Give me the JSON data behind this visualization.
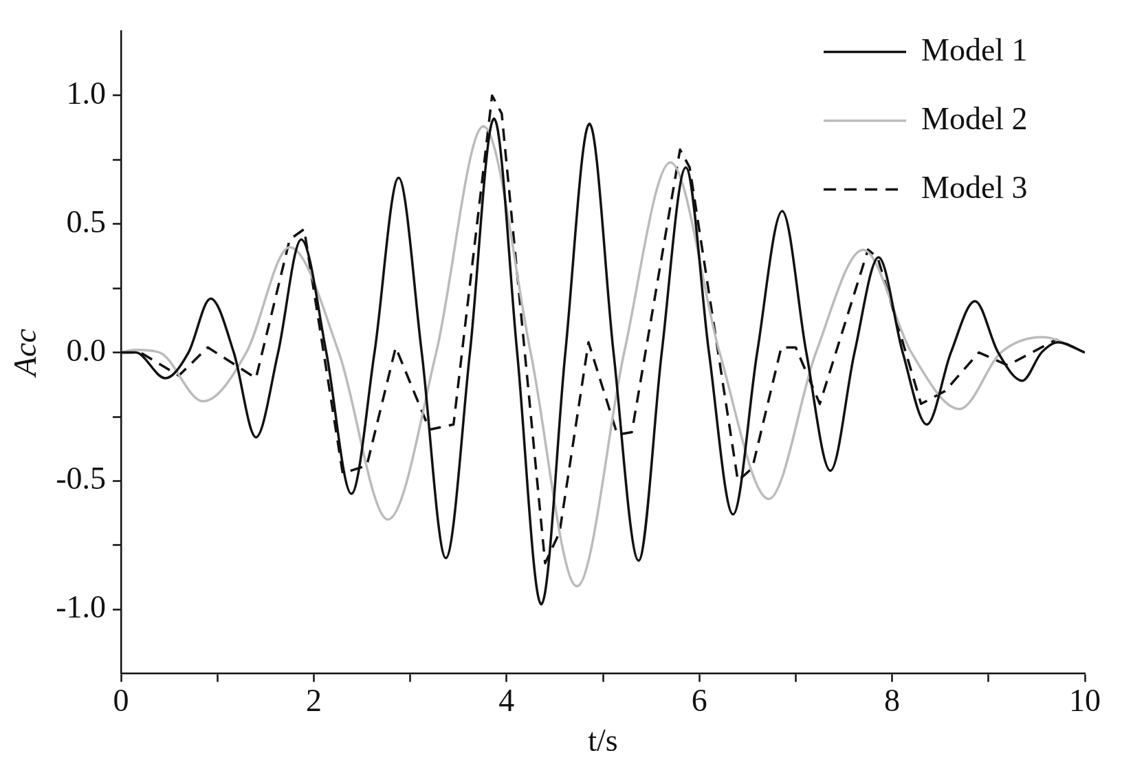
{
  "chart_data": {
    "type": "line",
    "xlabel": "t/s",
    "ylabel": "Acc",
    "legend": "top right",
    "grid": false,
    "xlim": [
      0,
      10
    ],
    "xticks": [
      0,
      {
        "value": 1,
        "label": null
      },
      2,
      {
        "value": 3,
        "label": null
      },
      4,
      {
        "value": 5,
        "label": null
      },
      6,
      {
        "value": 7,
        "label": null
      },
      8,
      {
        "value": 9,
        "label": null
      },
      10
    ],
    "ylim": [
      -1.25,
      1.25
    ],
    "yticks": [
      {
        "value": -1,
        "label": "-1.0"
      },
      {
        "value": -0.75,
        "label": null
      },
      {
        "value": -0.5,
        "label": "-0.5"
      },
      {
        "value": -0.25,
        "label": null
      },
      {
        "value": 0,
        "label": "0.0"
      },
      {
        "value": 0.25,
        "label": null
      },
      {
        "value": 0.5,
        "label": "0.5"
      },
      {
        "value": 0.75,
        "label": null
      },
      {
        "value": 1,
        "label": "1.0"
      }
    ],
    "series": [
      {
        "name": "Model 1",
        "color": "#111111",
        "line_style": "solid",
        "x": [
          0,
          0.15,
          0.46,
          0.7,
          0.93,
          1.17,
          1.4,
          1.63,
          1.87,
          2.13,
          2.39,
          2.63,
          2.88,
          3.12,
          3.37,
          3.62,
          3.87,
          4.11,
          4.36,
          4.61,
          4.86,
          5.11,
          5.37,
          5.61,
          5.86,
          6.1,
          6.35,
          6.6,
          6.86,
          7.11,
          7.36,
          7.61,
          7.86,
          8.11,
          8.36,
          8.61,
          8.86,
          9.1,
          9.35,
          9.55,
          9.72,
          10
        ],
        "values": [
          0,
          0,
          -0.1,
          0,
          0.21,
          0,
          -0.33,
          0,
          0.44,
          0,
          -0.55,
          0,
          0.68,
          0,
          -0.8,
          0,
          0.91,
          0,
          -0.98,
          0,
          0.89,
          0,
          -0.81,
          0,
          0.72,
          0,
          -0.63,
          0,
          0.55,
          0,
          -0.46,
          0,
          0.37,
          0,
          -0.28,
          0,
          0.2,
          0,
          -0.11,
          0,
          0.04,
          0
        ]
      },
      {
        "name": "Model 2",
        "color": "#bbbbbb",
        "line_style": "solid",
        "x": [
          0,
          0.15,
          0.4,
          0.85,
          1.3,
          1.75,
          2.26,
          2.77,
          3.27,
          3.76,
          4.25,
          4.73,
          5.22,
          5.7,
          6.21,
          6.72,
          7.21,
          7.7,
          8.2,
          8.7,
          9.13,
          9.56,
          10
        ],
        "values": [
          0,
          0.01,
          0,
          -0.19,
          0,
          0.41,
          0,
          -0.65,
          0,
          0.88,
          0,
          -0.91,
          0,
          0.74,
          0,
          -0.57,
          0,
          0.4,
          0,
          -0.22,
          0,
          0.06,
          0
        ]
      },
      {
        "name": "Model 3",
        "color": "#111111",
        "line_style": "dashed",
        "x": [
          0,
          0.2,
          0.6,
          0.9,
          1.4,
          1.75,
          1.9,
          2.3,
          2.55,
          2.85,
          3.2,
          3.45,
          3.85,
          3.95,
          4.4,
          4.55,
          4.85,
          5.15,
          5.3,
          5.8,
          5.9,
          6.4,
          6.55,
          6.85,
          7.0,
          7.25,
          7.75,
          7.85,
          8.3,
          8.55,
          8.9,
          9.2,
          9.7,
          10
        ],
        "values": [
          0,
          0,
          -0.09,
          0.02,
          -0.1,
          0.44,
          0.48,
          -0.47,
          -0.44,
          0.02,
          -0.3,
          -0.28,
          1.0,
          0.93,
          -0.82,
          -0.7,
          0.04,
          -0.32,
          -0.31,
          0.79,
          0.72,
          -0.5,
          -0.45,
          0.02,
          0.02,
          -0.2,
          0.4,
          0.37,
          -0.2,
          -0.15,
          0,
          -0.05,
          0.05,
          0
        ]
      }
    ]
  }
}
